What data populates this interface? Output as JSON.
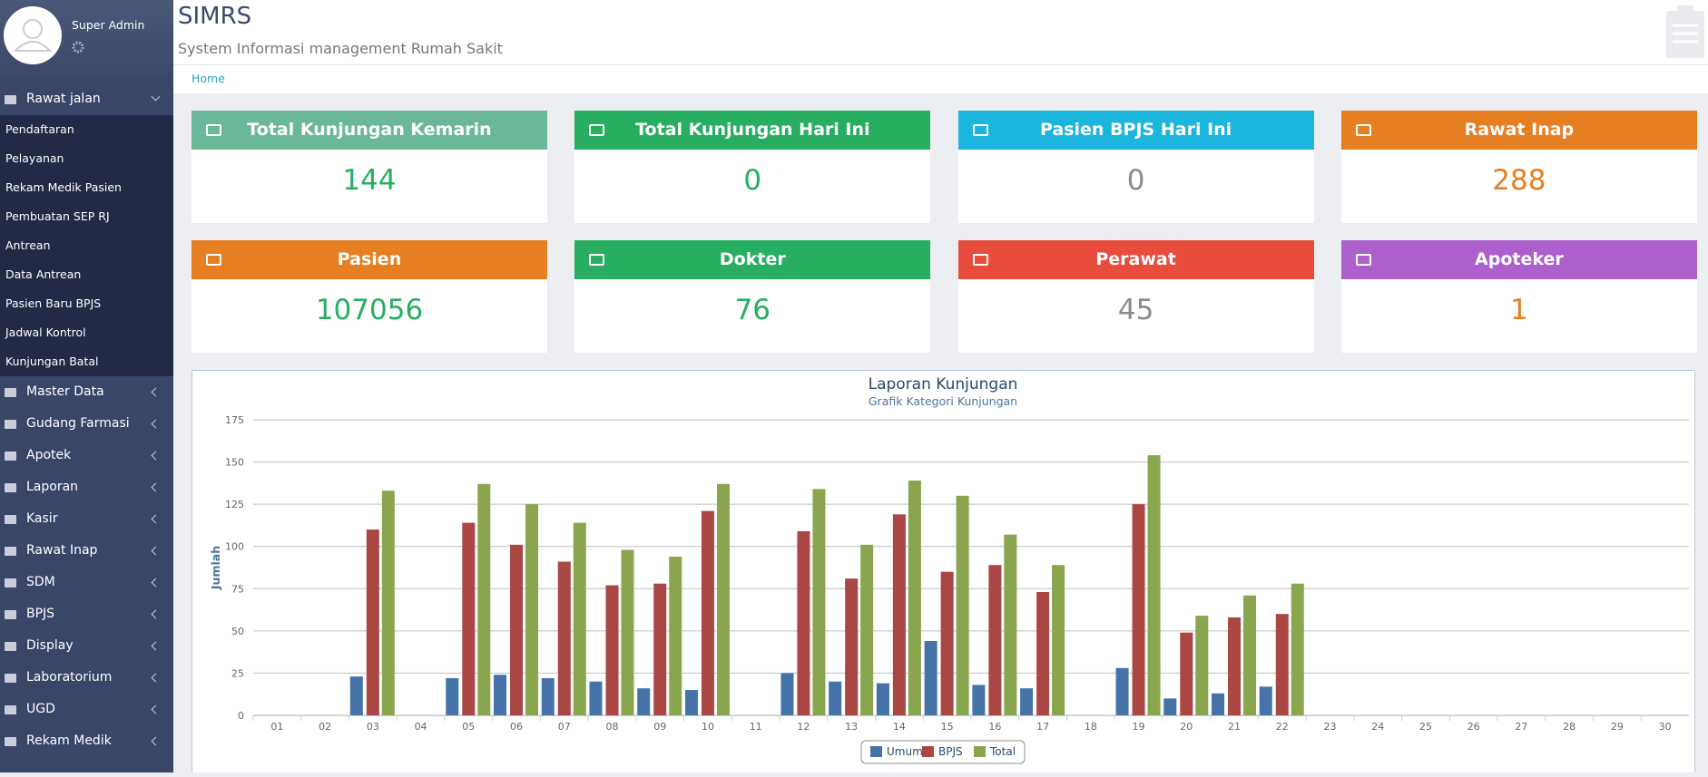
{
  "sidebar": {
    "user": "Super Admin",
    "menu": [
      {
        "label": "Rawat jalan",
        "open": true,
        "children": [
          "Pendaftaran",
          "Pelayanan",
          "Rekam Medik Pasien",
          "Pembuatan SEP RJ",
          "Antrean",
          "Data Antrean",
          "Pasien Baru BPJS",
          "Jadwal Kontrol",
          "Kunjungan Batal"
        ]
      },
      {
        "label": "Master Data"
      },
      {
        "label": "Gudang Farmasi"
      },
      {
        "label": "Apotek"
      },
      {
        "label": "Laporan"
      },
      {
        "label": "Kasir"
      },
      {
        "label": "Rawat Inap"
      },
      {
        "label": "SDM"
      },
      {
        "label": "BPJS"
      },
      {
        "label": "Display"
      },
      {
        "label": "Laboratorium"
      },
      {
        "label": "UGD"
      },
      {
        "label": "Rekam Medik"
      }
    ]
  },
  "header": {
    "title": "SIMRS",
    "subtitle": "System Informasi management Rumah Sakit"
  },
  "breadcrumb": [
    "Home"
  ],
  "cards": [
    {
      "title": "Total Kunjungan Kemarin",
      "value": 144,
      "color": "#6bb898",
      "value_color": "#27ae60"
    },
    {
      "title": "Total Kunjungan Hari Ini",
      "value": 0,
      "color": "#27ae60",
      "value_color": "#27ae60"
    },
    {
      "title": "Pasien BPJS Hari Ini",
      "value": 0,
      "color": "#1bb5de",
      "value_color": "#8a8a8a"
    },
    {
      "title": "Rawat Inap",
      "value": 288,
      "color": "#e67e22",
      "value_color": "#e67e22"
    },
    {
      "title": "Pasien",
      "value": 107056,
      "color": "#e67e22",
      "value_color": "#27ae60"
    },
    {
      "title": "Dokter",
      "value": 76,
      "color": "#27ae60",
      "value_color": "#27ae60"
    },
    {
      "title": "Perawat",
      "value": 45,
      "color": "#e74c3c",
      "value_color": "#8a8a8a"
    },
    {
      "title": "Apoteker",
      "value": 1,
      "color": "#ad5fcb",
      "value_color": "#e67e22"
    }
  ],
  "chart_data": {
    "type": "bar",
    "title": "Laporan Kunjungan",
    "subtitle": "Grafik Kategori Kunjungan",
    "y_label": "Jumlah",
    "categories": [
      "01",
      "02",
      "03",
      "04",
      "05",
      "06",
      "07",
      "08",
      "09",
      "10",
      "11",
      "12",
      "13",
      "14",
      "15",
      "16",
      "17",
      "18",
      "19",
      "20",
      "21",
      "22",
      "23",
      "24",
      "25",
      "26",
      "27",
      "28",
      "29",
      "30"
    ],
    "series": [
      {
        "name": "Umum",
        "color": "#4572a7",
        "values": [
          0,
          0,
          23,
          0,
          22,
          24,
          22,
          20,
          16,
          15,
          0,
          25,
          20,
          19,
          44,
          18,
          16,
          0,
          28,
          10,
          13,
          17,
          0,
          0,
          0,
          0,
          0,
          0,
          0,
          0
        ]
      },
      {
        "name": "BPJS",
        "color": "#aa4643",
        "values": [
          0,
          0,
          110,
          0,
          114,
          101,
          91,
          77,
          78,
          121,
          0,
          109,
          81,
          119,
          85,
          89,
          73,
          0,
          125,
          49,
          58,
          60,
          0,
          0,
          0,
          0,
          0,
          0,
          0,
          0
        ]
      },
      {
        "name": "Total",
        "color": "#89a54e",
        "values": [
          0,
          0,
          133,
          0,
          137,
          125,
          114,
          98,
          94,
          137,
          0,
          134,
          101,
          139,
          130,
          107,
          89,
          0,
          154,
          59,
          71,
          78,
          0,
          0,
          0,
          0,
          0,
          0,
          0,
          0
        ]
      }
    ],
    "ylim": [
      0,
      175
    ],
    "yticks": [
      0,
      25,
      50,
      75,
      100,
      125,
      150,
      175
    ],
    "grid": true,
    "legend": "bottom"
  }
}
